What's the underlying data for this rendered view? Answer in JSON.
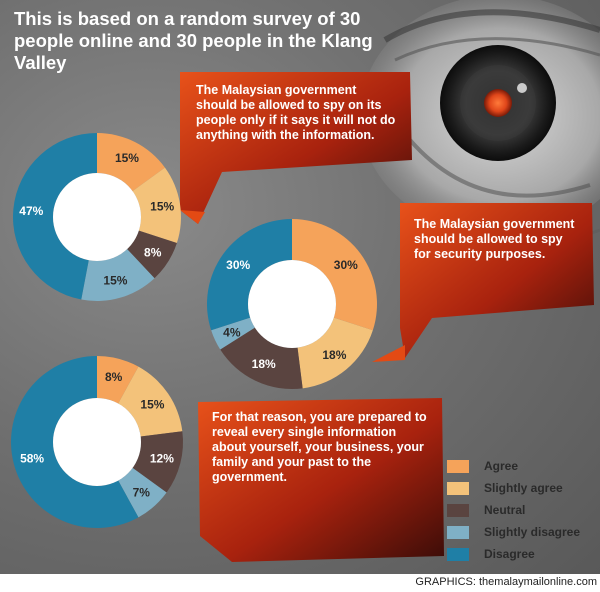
{
  "title": "This is based on a random survey of 30 people online and 30 people in the Klang Valley",
  "questions": [
    "The Malaysian government should be allowed to spy on its people only if it says it will not do anything with the information.",
    "The Malaysian government should be allowed to spy for security purposes.",
    "For that reason, you are prepared to reveal every single information about yourself, your business, your family and your past to the government."
  ],
  "credit": "GRAPHICS: themalaymailonline.com",
  "colors": {
    "agree": "#f5a35a",
    "slightly_agree": "#f3c27a",
    "neutral": "#5a4440",
    "slightly_disagree": "#7fb0c6",
    "disagree": "#1f7fa6",
    "callout_bright": "#e34a14",
    "callout_dark": "#3a0c08",
    "pupil": "#e0461a"
  },
  "legend": [
    {
      "label": "Agree",
      "color": "#f5a35a"
    },
    {
      "label": "Slightly agree",
      "color": "#f3c27a"
    },
    {
      "label": "Neutral",
      "color": "#5a4440"
    },
    {
      "label": "Slightly disagree",
      "color": "#7fb0c6"
    },
    {
      "label": "Disagree",
      "color": "#1f7fa6"
    }
  ],
  "chart_data": [
    {
      "type": "pie",
      "question": "The Malaysian government should be allowed to spy on its people only if it says it will not do anything with the information.",
      "categories": [
        "Agree",
        "Slightly agree",
        "Neutral",
        "Slightly disagree",
        "Disagree"
      ],
      "values": [
        15,
        15,
        8,
        15,
        47
      ],
      "labels": [
        "15%",
        "15%",
        "8%",
        "15%",
        "47%"
      ]
    },
    {
      "type": "pie",
      "question": "The Malaysian government should be allowed to spy for security purposes.",
      "categories": [
        "Agree",
        "Slightly agree",
        "Neutral",
        "Slightly disagree",
        "Disagree"
      ],
      "values": [
        30,
        18,
        18,
        4,
        30
      ],
      "labels": [
        "30%",
        "18%",
        "18%",
        "4%",
        "30%"
      ]
    },
    {
      "type": "pie",
      "question": "For that reason, you are prepared to reveal every single information about yourself, your business, your family and your past to the government.",
      "categories": [
        "Agree",
        "Slightly agree",
        "Neutral",
        "Slightly disagree",
        "Disagree"
      ],
      "values": [
        8,
        15,
        12,
        7,
        58
      ],
      "labels": [
        "8%",
        "15%",
        "12%",
        "7%",
        "58%"
      ]
    }
  ]
}
